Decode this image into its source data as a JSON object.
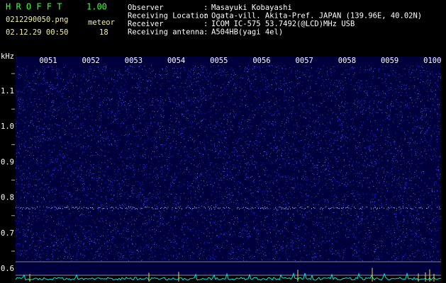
{
  "header": {
    "app_name": "H R O F F T",
    "version": "1.00",
    "file_name": "0212290050.png",
    "meteor_label": "meteor",
    "timestamp": "02.12.29 00:50",
    "meteor_count": 18
  },
  "info_separator": ":",
  "info": [
    {
      "label": "Observer",
      "value": "Masayuki Kobayashi"
    },
    {
      "label": "Receiving Location",
      "value": "Ogata-vill. Akita-Pref. JAPAN (139.96E, 40.02N)"
    },
    {
      "label": "Receiver",
      "value": "ICOM IC-575 53.7492(@LCD)MHz USB"
    },
    {
      "label": "Receiving antenna",
      "value": "A504HB(yagi 4el)"
    }
  ],
  "axis": {
    "unit": "kHz",
    "labels": [
      "1.1",
      "1.0",
      "0.9",
      "0.8",
      "0.7",
      "0.6"
    ]
  },
  "time_labels": [
    "0051",
    "0052",
    "0053",
    "0054",
    "0055",
    "0056",
    "0057",
    "0058",
    "0059",
    "0100"
  ]
}
